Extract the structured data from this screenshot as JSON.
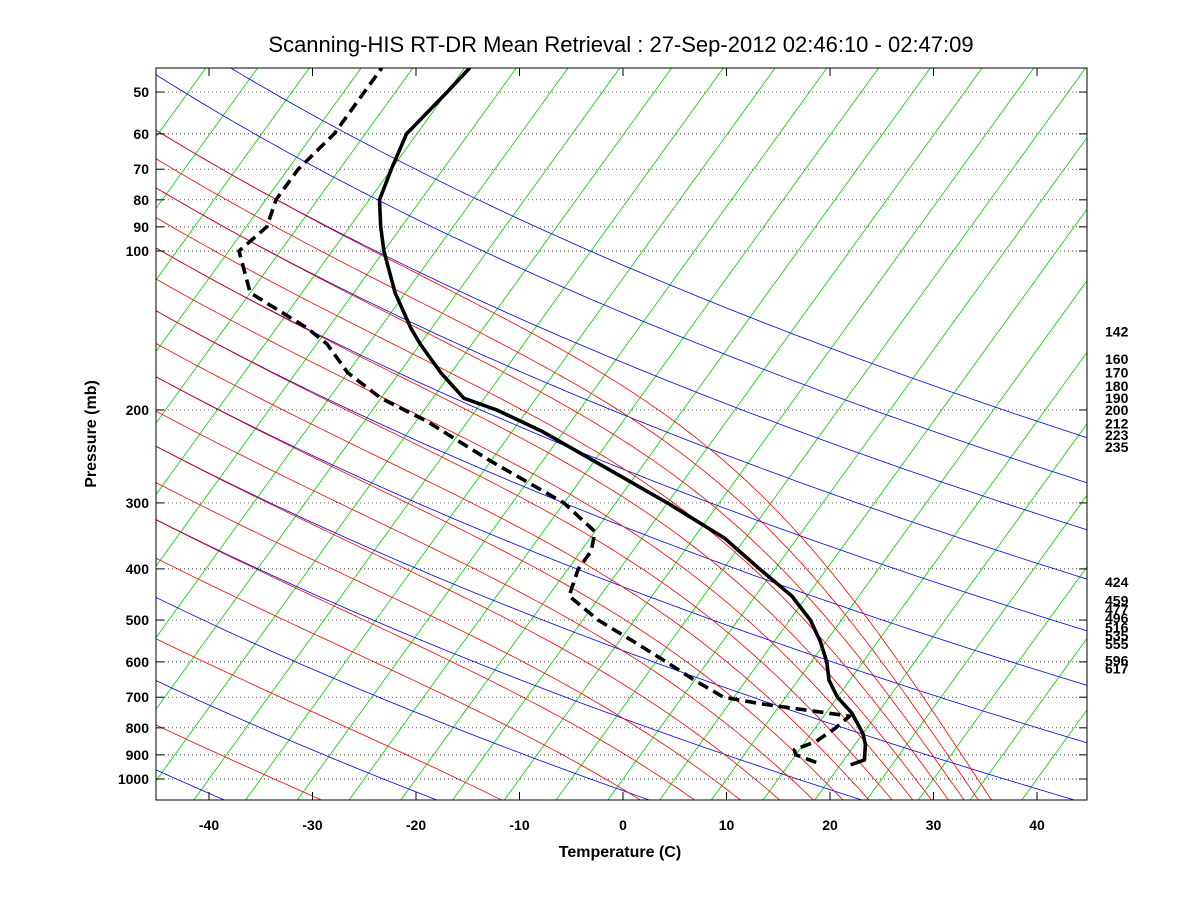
{
  "chart_data": {
    "type": "line",
    "subtype": "skew-T log-P thermodynamic diagram",
    "title": "Scanning-HIS RT-DR Mean Retrieval : 27-Sep-2012 02:46:10 - 02:47:09",
    "xlabel": "Temperature (C)",
    "ylabel": "Pressure (mb)",
    "xlim": [
      -45,
      45
    ],
    "ylim": [
      1100,
      45
    ],
    "grid": true,
    "x_ticks": [
      -40,
      -30,
      -20,
      -10,
      0,
      10,
      20,
      30,
      40
    ],
    "y_ticks": [
      50,
      60,
      70,
      80,
      90,
      100,
      200,
      300,
      400,
      500,
      600,
      700,
      800,
      900,
      1000
    ],
    "skew_degC_per_decade": 36.9,
    "right_axis_labels": [
      {
        "p": 142,
        "label": "142"
      },
      {
        "p": 160,
        "label": "160"
      },
      {
        "p": 170,
        "label": "170"
      },
      {
        "p": 180,
        "label": "180"
      },
      {
        "p": 190,
        "label": "190"
      },
      {
        "p": 200,
        "label": "200"
      },
      {
        "p": 212,
        "label": "212"
      },
      {
        "p": 223,
        "label": "223"
      },
      {
        "p": 235,
        "label": "235"
      },
      {
        "p": 424,
        "label": "424"
      },
      {
        "p": 459,
        "label": "459"
      },
      {
        "p": 477,
        "label": "477"
      },
      {
        "p": 496,
        "label": "496"
      },
      {
        "p": 516,
        "label": "516"
      },
      {
        "p": 535,
        "label": "535"
      },
      {
        "p": 555,
        "label": "555"
      },
      {
        "p": 596,
        "label": "596"
      },
      {
        "p": 617,
        "label": "617"
      }
    ],
    "series": [
      {
        "name": "temperature",
        "style": "solid",
        "color": "#000000",
        "p": [
          940,
          920,
          890,
          860,
          820,
          750,
          700,
          650,
          600,
          550,
          500,
          450,
          400,
          350,
          300,
          250,
          220,
          200,
          190,
          170,
          150,
          140,
          120,
          100,
          90,
          80,
          70,
          60,
          50,
          45
        ],
        "t": [
          21.0,
          22.0,
          21.5,
          21.0,
          20.0,
          17.5,
          15.0,
          13.0,
          11.5,
          9.5,
          7.0,
          3.5,
          -1.5,
          -7.0,
          -15.0,
          -25.0,
          -32.0,
          -38.0,
          -42.0,
          -46.0,
          -50.0,
          -52.0,
          -56.0,
          -60.0,
          -62.0,
          -64.0,
          -65.0,
          -66.0,
          -65.0,
          -64.5
        ]
      },
      {
        "name": "dewpoint",
        "style": "dashed",
        "color": "#000000",
        "p": [
          930,
          900,
          880,
          850,
          800,
          760,
          720,
          700,
          650,
          600,
          550,
          500,
          450,
          400,
          370,
          340,
          300,
          250,
          210,
          190,
          170,
          150,
          140,
          120,
          100,
          90,
          80,
          70,
          60,
          50,
          45
        ],
        "t": [
          17.5,
          15.0,
          14.5,
          16.0,
          17.0,
          17.5,
          8.0,
          4.0,
          0.0,
          -4.0,
          -8.5,
          -13.5,
          -18.0,
          -19.0,
          -19.0,
          -20.0,
          -25.0,
          -35.0,
          -44.0,
          -50.0,
          -55.0,
          -59.0,
          -62.0,
          -70.0,
          -74.0,
          -73.0,
          -74.0,
          -74.0,
          -73.0,
          -73.0,
          -73.0
        ]
      }
    ],
    "background_lines": {
      "isotherms": {
        "color": "#00d000",
        "from": -120,
        "to": 40,
        "step": 5
      },
      "dry_adiabats": {
        "color": "#0000e6",
        "theta_K_from": 210,
        "theta_K_to": 450,
        "theta_K_step": 20
      },
      "moist_adiabats": {
        "color": "#ff0000",
        "thetae_K": [
          220,
          240,
          260,
          280,
          290,
          300,
          310,
          320,
          330,
          340,
          350,
          360,
          370,
          380,
          390,
          400,
          410
        ]
      }
    }
  }
}
